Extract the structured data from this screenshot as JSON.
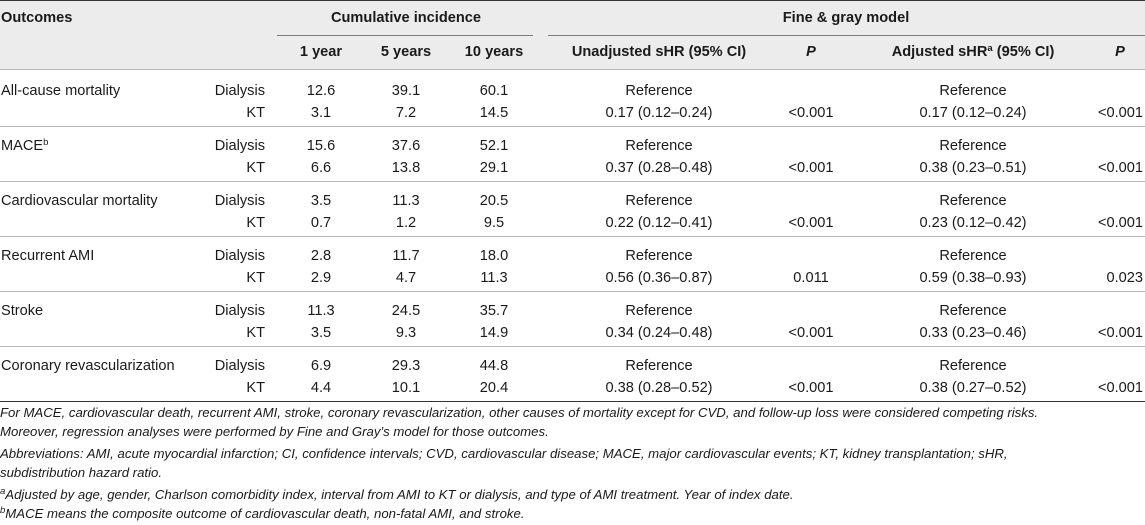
{
  "header": {
    "outcomes": "Outcomes",
    "cumulative": "Cumulative incidence",
    "fine_gray": "Fine & gray model",
    "col_1yr": "1 year",
    "col_5yr": "5 years",
    "col_10yr": "10 years",
    "col_unadj": "Unadjusted sHR (95% CI)",
    "col_p": "P",
    "col_adj_pre": "Adjusted sHR",
    "col_adj_sup": "a",
    "col_adj_post": " (95% CI)"
  },
  "rows": [
    {
      "outcome": "All-cause mortality",
      "outcome_sup": "",
      "dialysis": {
        "group": "Dialysis",
        "y1": "12.6",
        "y5": "39.1",
        "y10": "60.1",
        "unadj": "Reference",
        "p1": "",
        "adj": "Reference",
        "p2": ""
      },
      "kt": {
        "group": "KT",
        "y1": "3.1",
        "y5": "7.2",
        "y10": "14.5",
        "unadj": "0.17 (0.12–0.24)",
        "p1": "<0.001",
        "adj": "0.17 (0.12–0.24)",
        "p2": "<0.001"
      }
    },
    {
      "outcome": "MACE",
      "outcome_sup": "b",
      "dialysis": {
        "group": "Dialysis",
        "y1": "15.6",
        "y5": "37.6",
        "y10": "52.1",
        "unadj": "Reference",
        "p1": "",
        "adj": "Reference",
        "p2": ""
      },
      "kt": {
        "group": "KT",
        "y1": "6.6",
        "y5": "13.8",
        "y10": "29.1",
        "unadj": "0.37 (0.28–0.48)",
        "p1": "<0.001",
        "adj": "0.38 (0.23–0.51)",
        "p2": "<0.001"
      }
    },
    {
      "outcome": "Cardiovascular mortality",
      "outcome_sup": "",
      "dialysis": {
        "group": "Dialysis",
        "y1": "3.5",
        "y5": "11.3",
        "y10": "20.5",
        "unadj": "Reference",
        "p1": "",
        "adj": "Reference",
        "p2": ""
      },
      "kt": {
        "group": "KT",
        "y1": "0.7",
        "y5": "1.2",
        "y10": "9.5",
        "unadj": "0.22 (0.12–0.41)",
        "p1": "<0.001",
        "adj": "0.23 (0.12–0.42)",
        "p2": "<0.001"
      }
    },
    {
      "outcome": "Recurrent AMI",
      "outcome_sup": "",
      "dialysis": {
        "group": "Dialysis",
        "y1": "2.8",
        "y5": "11.7",
        "y10": "18.0",
        "unadj": "Reference",
        "p1": "",
        "adj": "Reference",
        "p2": ""
      },
      "kt": {
        "group": "KT",
        "y1": "2.9",
        "y5": "4.7",
        "y10": "11.3",
        "unadj": "0.56 (0.36–0.87)",
        "p1": "0.011",
        "adj": "0.59 (0.38–0.93)",
        "p2": "0.023"
      }
    },
    {
      "outcome": "Stroke",
      "outcome_sup": "",
      "dialysis": {
        "group": "Dialysis",
        "y1": "11.3",
        "y5": "24.5",
        "y10": "35.7",
        "unadj": "Reference",
        "p1": "",
        "adj": "Reference",
        "p2": ""
      },
      "kt": {
        "group": "KT",
        "y1": "3.5",
        "y5": "9.3",
        "y10": "14.9",
        "unadj": "0.34 (0.24–0.48)",
        "p1": "<0.001",
        "adj": "0.33 (0.23–0.46)",
        "p2": "<0.001"
      }
    },
    {
      "outcome": "Coronary revascularization",
      "outcome_sup": "",
      "dialysis": {
        "group": "Dialysis",
        "y1": "6.9",
        "y5": "29.3",
        "y10": "44.8",
        "unadj": "Reference",
        "p1": "",
        "adj": "Reference",
        "p2": ""
      },
      "kt": {
        "group": "KT",
        "y1": "4.4",
        "y5": "10.1",
        "y10": "20.4",
        "unadj": "0.38 (0.28–0.52)",
        "p1": "<0.001",
        "adj": "0.38 (0.27–0.52)",
        "p2": "<0.001"
      }
    }
  ],
  "footnotes": {
    "competing_1": "For MACE, cardiovascular death, recurrent AMI, stroke, coronary revascularization, other causes of mortality except for CVD, and follow-up loss were considered competing risks.",
    "competing_2": "Moreover, regression analyses were performed by Fine and Gray’s model for those outcomes.",
    "abbrev_1": "Abbreviations: AMI, acute myocardial infarction; CI, confidence intervals; CVD, cardiovascular disease; MACE, major cardiovascular events; KT, kidney transplantation; sHR,",
    "abbrev_2": "subdistribution hazard ratio.",
    "note_a_mark": "a",
    "note_a": "Adjusted by age, gender, Charlson comorbidity index, interval from AMI to KT or dialysis, and type of AMI treatment. Year of index date.",
    "note_b_mark": "b",
    "note_b": "MACE means the composite outcome of cardiovascular death, non-fatal AMI, and stroke."
  }
}
